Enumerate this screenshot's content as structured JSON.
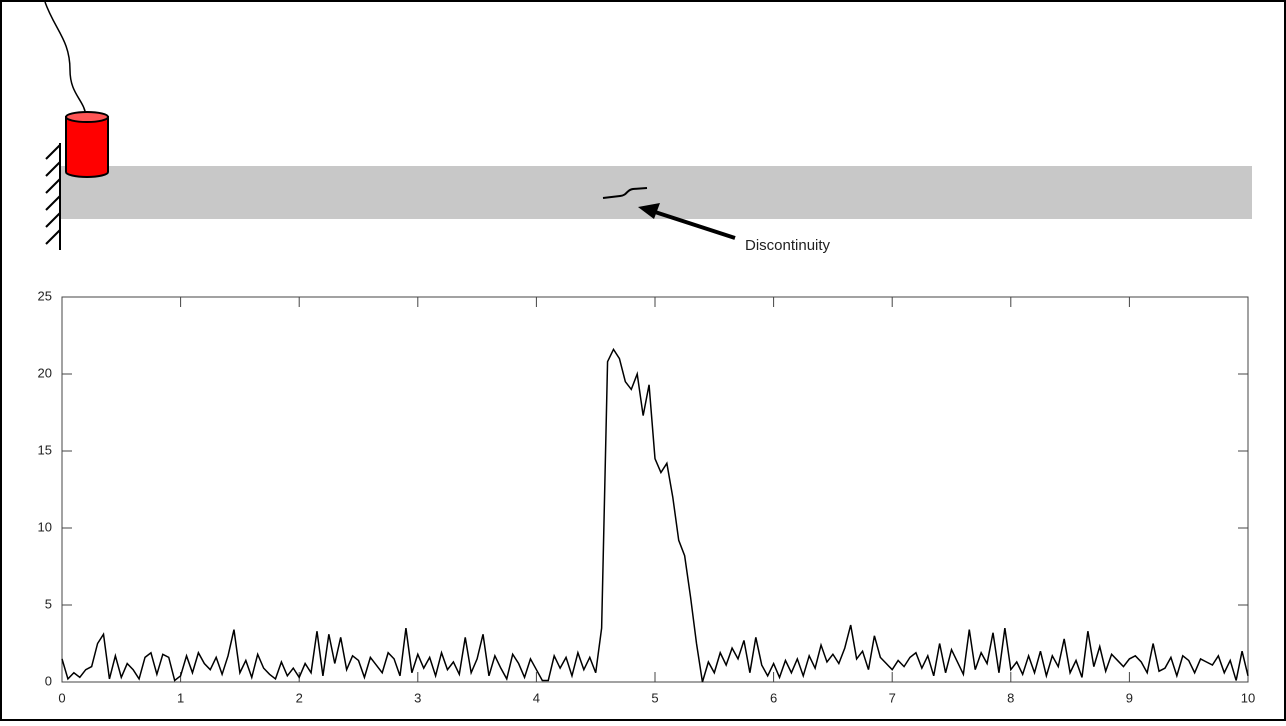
{
  "chart_data": {
    "type": "line",
    "annotations": [
      "Discontinuity"
    ],
    "x": [
      0,
      0.05,
      0.1,
      0.15,
      0.2,
      0.25,
      0.3,
      0.35,
      0.4,
      0.45,
      0.5,
      0.55,
      0.6,
      0.65,
      0.7,
      0.75,
      0.8,
      0.85,
      0.9,
      0.95,
      1,
      1.05,
      1.1,
      1.15,
      1.2,
      1.25,
      1.3,
      1.35,
      1.4,
      1.45,
      1.5,
      1.55,
      1.6,
      1.65,
      1.7,
      1.75,
      1.8,
      1.85,
      1.9,
      1.95,
      2,
      2.05,
      2.1,
      2.15,
      2.2,
      2.25,
      2.3,
      2.35,
      2.4,
      2.45,
      2.5,
      2.55,
      2.6,
      2.65,
      2.7,
      2.75,
      2.8,
      2.85,
      2.9,
      2.95,
      3,
      3.05,
      3.1,
      3.15,
      3.2,
      3.25,
      3.3,
      3.35,
      3.4,
      3.45,
      3.5,
      3.55,
      3.6,
      3.65,
      3.7,
      3.75,
      3.8,
      3.85,
      3.9,
      3.95,
      4,
      4.05,
      4.1,
      4.15,
      4.2,
      4.25,
      4.3,
      4.35,
      4.4,
      4.45,
      4.5,
      4.55,
      4.6,
      4.65,
      4.7,
      4.75,
      4.8,
      4.85,
      4.9,
      4.95,
      5,
      5.05,
      5.1,
      5.15,
      5.2,
      5.25,
      5.3,
      5.35,
      5.4,
      5.45,
      5.5,
      5.55,
      5.6,
      5.65,
      5.7,
      5.75,
      5.8,
      5.85,
      5.9,
      5.95,
      6,
      6.05,
      6.1,
      6.15,
      6.2,
      6.25,
      6.3,
      6.35,
      6.4,
      6.45,
      6.5,
      6.55,
      6.6,
      6.65,
      6.7,
      6.75,
      6.8,
      6.85,
      6.9,
      6.95,
      7,
      7.05,
      7.1,
      7.15,
      7.2,
      7.25,
      7.3,
      7.35,
      7.4,
      7.45,
      7.5,
      7.55,
      7.6,
      7.65,
      7.7,
      7.75,
      7.8,
      7.85,
      7.9,
      7.95,
      8,
      8.05,
      8.1,
      8.15,
      8.2,
      8.25,
      8.3,
      8.35,
      8.4,
      8.45,
      8.5,
      8.55,
      8.6,
      8.65,
      8.7,
      8.75,
      8.8,
      8.85,
      8.9,
      8.95,
      9,
      9.05,
      9.1,
      9.15,
      9.2,
      9.25,
      9.3,
      9.35,
      9.4,
      9.45,
      9.5,
      9.55,
      9.6,
      9.65,
      9.7,
      9.75,
      9.8,
      9.85,
      9.9,
      9.95,
      10
    ],
    "series": [
      {
        "color": "#000000",
        "values": [
          1.5,
          0.2,
          0.6,
          0.3,
          0.8,
          1.0,
          2.5,
          3.1,
          0.2,
          1.7,
          0.3,
          1.2,
          0.8,
          0.2,
          1.6,
          1.9,
          0.5,
          1.8,
          1.6,
          0.1,
          0.4,
          1.7,
          0.6,
          1.9,
          1.2,
          0.8,
          1.6,
          0.5,
          1.7,
          3.4,
          0.6,
          1.4,
          0.3,
          1.8,
          0.9,
          0.5,
          0.2,
          1.3,
          0.4,
          0.9,
          0.3,
          1.2,
          0.6,
          3.3,
          0.4,
          3.1,
          1.2,
          2.9,
          0.8,
          1.7,
          1.4,
          0.3,
          1.6,
          1.1,
          0.6,
          1.9,
          1.5,
          0.4,
          3.5,
          0.6,
          1.8,
          0.9,
          1.6,
          0.4,
          1.9,
          0.8,
          1.3,
          0.5,
          2.9,
          0.6,
          1.5,
          3.1,
          0.4,
          1.7,
          0.9,
          0.2,
          1.8,
          1.2,
          0.3,
          1.5,
          0.8,
          0.1,
          0.1,
          1.7,
          0.9,
          1.6,
          0.4,
          1.9,
          0.8,
          1.6,
          0.6,
          3.5,
          20.8,
          21.6,
          21.0,
          19.5,
          19.0,
          20.0,
          17.3,
          19.3,
          14.5,
          13.6,
          14.2,
          12.0,
          9.2,
          8.2,
          5.5,
          2.5,
          0,
          1.3,
          0.6,
          1.9,
          1.1,
          2.2,
          1.5,
          2.7,
          0.6,
          2.9,
          1.1,
          0.4,
          1.2,
          0.3,
          1.4,
          0.6,
          1.5,
          0.4,
          1.7,
          0.9,
          2.4,
          1.3,
          1.8,
          1.2,
          2.2,
          3.7,
          1.5,
          2.0,
          0.8,
          3.0,
          1.6,
          1.2,
          0.8,
          1.4,
          1.0,
          1.6,
          1.9,
          0.9,
          1.7,
          0.4,
          2.5,
          0.6,
          2.1,
          1.3,
          0.5,
          3.4,
          0.8,
          1.9,
          1.2,
          3.2,
          0.6,
          3.5,
          0.8,
          1.3,
          0.5,
          1.7,
          0.6,
          2.0,
          0.4,
          1.7,
          1.0,
          2.8,
          0.6,
          1.4,
          0.3,
          3.3,
          1.0,
          2.3,
          0.7,
          1.8,
          1.4,
          1.0,
          1.5,
          1.7,
          1.3,
          0.6,
          2.5,
          0.7,
          0.9,
          1.6,
          0.4,
          1.7,
          1.4,
          0.6,
          1.5,
          1.3,
          1.1,
          1.7,
          0.6,
          1.4,
          0.1,
          2.0,
          0.4
        ]
      }
    ],
    "xlim": [
      0,
      10
    ],
    "xticks": [
      0,
      1,
      2,
      3,
      4,
      5,
      6,
      7,
      8,
      9,
      10
    ],
    "ylim": [
      0,
      25
    ],
    "yticks": [
      0,
      5,
      10,
      15,
      20,
      25
    ]
  }
}
